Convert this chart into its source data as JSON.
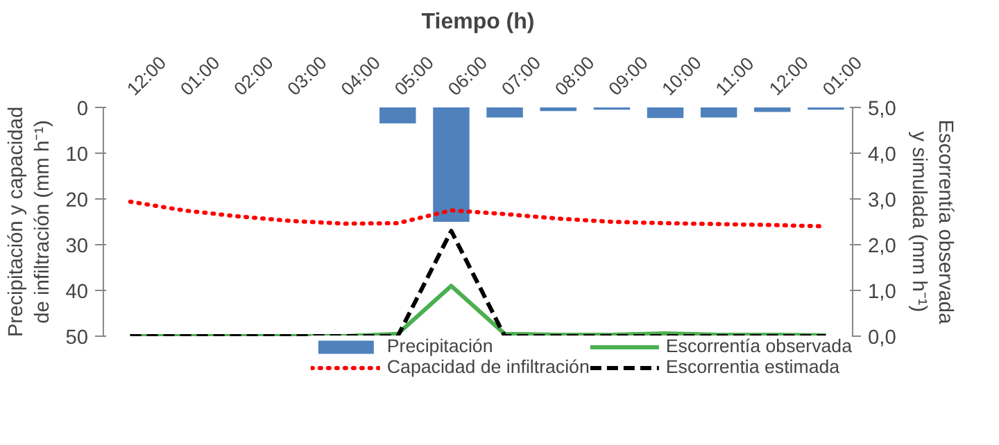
{
  "chart_data": {
    "type": "bar",
    "xlabel": "Tiempo (h)",
    "ylabel": "Precipitación y capacidad de infiltración (mm h⁻¹)",
    "y2label": "Escorrentía observada y simulada (mm h⁻¹)",
    "categories": [
      "12:00",
      "01:00",
      "02:00",
      "03:00",
      "04:00",
      "05:00",
      "06:00",
      "07:00",
      "08:00",
      "09:00",
      "10:00",
      "11:00",
      "12:00",
      "01:00"
    ],
    "ylim": [
      50,
      0
    ],
    "yticks": [
      0,
      10,
      20,
      30,
      40,
      50
    ],
    "y2lim": [
      0,
      5
    ],
    "y2ticks": [
      {
        "value": 0,
        "label": "0,0"
      },
      {
        "value": 1,
        "label": "1,0"
      },
      {
        "value": 2,
        "label": "2,0"
      },
      {
        "value": 3,
        "label": "3,0"
      },
      {
        "value": 4,
        "label": "4,0"
      },
      {
        "value": 5,
        "label": "5,0"
      }
    ],
    "grid": false,
    "legend": "bottom",
    "series": [
      {
        "name": "Precipitación",
        "color": "#4f81bd",
        "values": [
          0,
          0,
          0,
          0,
          0,
          3.5,
          25,
          2.2,
          0.8,
          0.5,
          2.3,
          2.2,
          1.0,
          0.5
        ]
      },
      {
        "name": "Capacidad de infiltración",
        "type": "line",
        "line_style": "dotted",
        "color": "#ff0000",
        "values": [
          20.6,
          22.5,
          23.8,
          24.8,
          25.4,
          25.3,
          22.5,
          23.3,
          24.3,
          25.0,
          25.3,
          25.5,
          25.7,
          26.0
        ]
      },
      {
        "name": "Escorrentía observada",
        "type": "line",
        "line_style": "solid",
        "axis": "y2",
        "color": "#4caf50",
        "values": [
          0,
          0,
          0,
          0,
          0,
          0.05,
          1.1,
          0.05,
          0.03,
          0.03,
          0.06,
          0.03,
          0.03,
          0.02
        ]
      },
      {
        "name": "Escorrentia estimada",
        "type": "line",
        "line_style": "dashed",
        "axis": "y2",
        "color": "#000000",
        "values": [
          0,
          0,
          0,
          0,
          0,
          0,
          2.3,
          0,
          0,
          0,
          0,
          0,
          0,
          0
        ]
      }
    ]
  }
}
